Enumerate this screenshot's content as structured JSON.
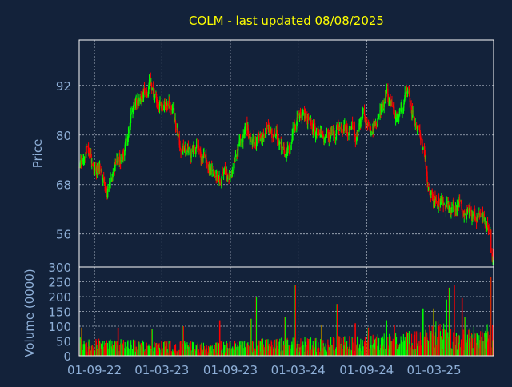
{
  "title": "COLM - last updated 08/08/2025",
  "colors": {
    "background": "#13223a",
    "title": "#ffff00",
    "axis_text": "#8fb0d8",
    "grid": "#c8d0dc",
    "up": "#00ff00",
    "down": "#ff0000"
  },
  "chart_data": [
    {
      "type": "candlestick",
      "ylabel": "Price",
      "yticks": [
        56,
        68,
        80,
        92
      ],
      "ylim": [
        48,
        103
      ],
      "grid": true,
      "x_start": "2022-07-22",
      "x_end": "2025-08-08",
      "price_anchors": [
        [
          "2022-07-22",
          72
        ],
        [
          "2022-08-12",
          76
        ],
        [
          "2022-09-02",
          71
        ],
        [
          "2022-09-16",
          72
        ],
        [
          "2022-10-07",
          67
        ],
        [
          "2022-10-21",
          72
        ],
        [
          "2022-11-11",
          74
        ],
        [
          "2022-11-25",
          78
        ],
        [
          "2022-12-09",
          85
        ],
        [
          "2022-12-23",
          87
        ],
        [
          "2023-01-06",
          89
        ],
        [
          "2023-01-20",
          91
        ],
        [
          "2023-01-27",
          94
        ],
        [
          "2023-02-10",
          89
        ],
        [
          "2023-03-03",
          87
        ],
        [
          "2023-03-24",
          88
        ],
        [
          "2023-04-07",
          82
        ],
        [
          "2023-04-21",
          76
        ],
        [
          "2023-05-12",
          75
        ],
        [
          "2023-06-02",
          77
        ],
        [
          "2023-06-23",
          74
        ],
        [
          "2023-07-14",
          71
        ],
        [
          "2023-08-04",
          70
        ],
        [
          "2023-08-25",
          70
        ],
        [
          "2023-09-08",
          72
        ],
        [
          "2023-09-22",
          77
        ],
        [
          "2023-10-13",
          81
        ],
        [
          "2023-11-03",
          78
        ],
        [
          "2023-11-24",
          80
        ],
        [
          "2023-12-15",
          81
        ],
        [
          "2024-01-05",
          79
        ],
        [
          "2024-01-26",
          76
        ],
        [
          "2024-02-16",
          81
        ],
        [
          "2024-03-08",
          85
        ],
        [
          "2024-03-29",
          83
        ],
        [
          "2024-04-19",
          80
        ],
        [
          "2024-05-10",
          78
        ],
        [
          "2024-05-31",
          80
        ],
        [
          "2024-06-21",
          82
        ],
        [
          "2024-07-12",
          81
        ],
        [
          "2024-08-02",
          80
        ],
        [
          "2024-08-23",
          84
        ],
        [
          "2024-09-13",
          81
        ],
        [
          "2024-10-04",
          85
        ],
        [
          "2024-10-25",
          89
        ],
        [
          "2024-11-15",
          84
        ],
        [
          "2024-12-06",
          86
        ],
        [
          "2024-12-20",
          92
        ],
        [
          "2025-01-10",
          82
        ],
        [
          "2025-01-31",
          77
        ],
        [
          "2025-02-14",
          67
        ],
        [
          "2025-03-07",
          65
        ],
        [
          "2025-03-28",
          63
        ],
        [
          "2025-04-18",
          62
        ],
        [
          "2025-05-09",
          63
        ],
        [
          "2025-05-30",
          61
        ],
        [
          "2025-06-20",
          60
        ],
        [
          "2025-07-11",
          60
        ],
        [
          "2025-07-25",
          57
        ],
        [
          "2025-07-31",
          59
        ],
        [
          "2025-08-01",
          53
        ],
        [
          "2025-08-08",
          51
        ]
      ]
    },
    {
      "type": "bar",
      "ylabel": "Volume (0000)",
      "yticks": [
        0,
        50,
        100,
        150,
        200,
        250,
        300
      ],
      "ylim": [
        0,
        300
      ],
      "grid": true,
      "volume_anchors": [
        [
          "2022-07-22",
          40
        ],
        [
          "2023-01-06",
          35
        ],
        [
          "2023-07-14",
          30
        ],
        [
          "2024-01-05",
          40
        ],
        [
          "2024-07-12",
          45
        ],
        [
          "2024-12-06",
          50
        ],
        [
          "2025-03-07",
          75
        ],
        [
          "2025-05-30",
          60
        ],
        [
          "2025-08-08",
          80
        ]
      ],
      "volume_spikes": [
        [
          "2022-07-29",
          95
        ],
        [
          "2022-11-04",
          95
        ],
        [
          "2023-02-03",
          90
        ],
        [
          "2023-04-28",
          100
        ],
        [
          "2023-08-04",
          120
        ],
        [
          "2023-10-27",
          125
        ],
        [
          "2023-11-10",
          200
        ],
        [
          "2024-01-26",
          130
        ],
        [
          "2024-02-23",
          240
        ],
        [
          "2024-05-03",
          105
        ],
        [
          "2024-06-14",
          175
        ],
        [
          "2024-08-02",
          110
        ],
        [
          "2024-09-06",
          95
        ],
        [
          "2024-10-25",
          120
        ],
        [
          "2024-11-15",
          105
        ],
        [
          "2025-01-31",
          160
        ],
        [
          "2025-02-28",
          160
        ],
        [
          "2025-03-14",
          100
        ],
        [
          "2025-04-04",
          190
        ],
        [
          "2025-04-11",
          230
        ],
        [
          "2025-04-25",
          240
        ],
        [
          "2025-05-16",
          195
        ],
        [
          "2025-05-23",
          130
        ],
        [
          "2025-08-01",
          265
        ]
      ]
    }
  ],
  "xaxis": {
    "tick_labels": [
      "01-09-22",
      "01-03-23",
      "01-09-23",
      "01-03-24",
      "01-09-24",
      "01-03-25"
    ],
    "tick_dates": [
      "2022-09-01",
      "2023-03-01",
      "2023-09-01",
      "2024-03-01",
      "2024-09-01",
      "2025-03-01"
    ]
  }
}
